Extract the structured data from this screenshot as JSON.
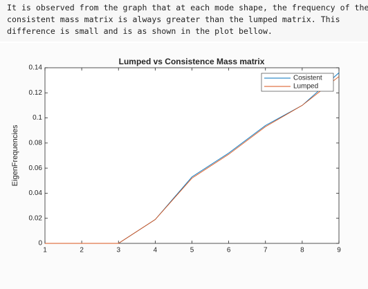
{
  "text": {
    "lines": [
      "It is observed from the graph that at each mode shape, the frequency of the",
      "consistent mass matrix is always greater than the lumped matrix. This",
      "difference is small and is as shown in the plot bellow."
    ]
  },
  "chart_data": {
    "type": "line",
    "title": "Lumped vs Consistence Mass matrix",
    "ylabel": "EigenFrequencies",
    "x": [
      1,
      2,
      3,
      4,
      5,
      6,
      7,
      8,
      9
    ],
    "series": [
      {
        "name": "Cosistent",
        "color": "#0072bd",
        "values": [
          0,
          0,
          0,
          0.019,
          0.053,
          0.072,
          0.094,
          0.11,
          0.136
        ]
      },
      {
        "name": "Lumped",
        "color": "#d95319",
        "values": [
          0,
          0,
          0,
          0.019,
          0.052,
          0.071,
          0.093,
          0.11,
          0.133
        ]
      }
    ],
    "xlim": [
      1,
      9
    ],
    "xticks": [
      1,
      2,
      3,
      4,
      5,
      6,
      7,
      8,
      9
    ],
    "ylim": [
      0,
      0.14
    ],
    "yticks": [
      0,
      0.02,
      0.04,
      0.06,
      0.08,
      0.1,
      0.12,
      0.14
    ],
    "legend": "top-right",
    "grid": false
  }
}
